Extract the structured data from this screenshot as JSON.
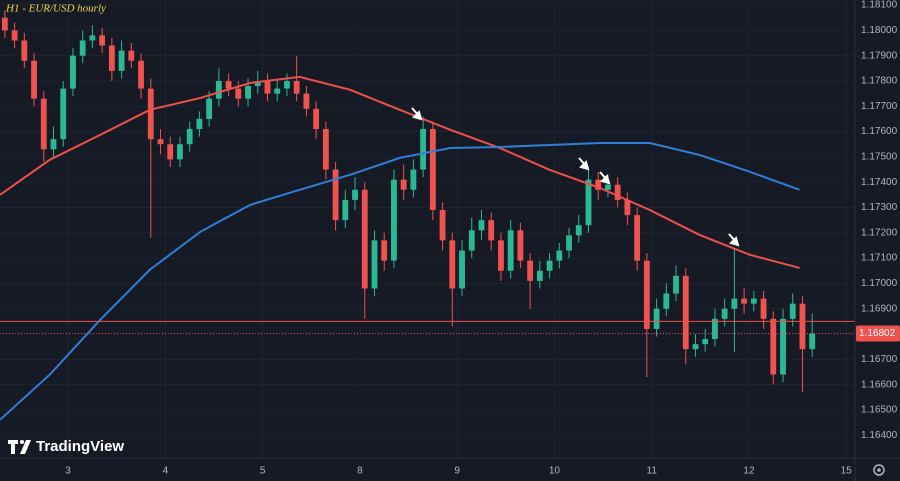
{
  "chart_data": {
    "type": "candlestick",
    "title": "H1 - EUR/USD hourly",
    "brand": "TradingView",
    "x": [
      -0.65,
      -0.55,
      -0.45,
      -0.35,
      -0.25,
      -0.15,
      -0.05,
      0.05,
      0.15,
      0.25,
      0.35,
      0.45,
      0.55,
      0.65,
      0.75,
      0.85,
      0.95,
      1.05,
      1.15,
      1.25,
      1.35,
      1.45,
      1.55,
      1.65,
      1.75,
      1.85,
      1.95,
      2.05,
      2.15,
      2.25,
      2.35,
      2.45,
      2.55,
      2.65,
      2.75,
      2.85,
      2.95,
      3.05,
      3.15,
      3.25,
      3.35,
      3.45,
      3.55,
      3.65,
      3.75,
      3.85,
      3.95,
      4.05,
      4.15,
      4.25,
      4.35,
      4.45,
      4.55,
      4.65,
      4.75,
      4.85,
      4.95,
      5.05,
      5.15,
      5.25,
      5.35,
      5.45,
      5.55,
      5.65,
      5.75,
      5.85,
      5.95,
      6.05,
      6.15,
      6.25,
      6.35,
      6.45,
      6.55,
      6.65,
      6.75,
      6.85,
      6.95,
      7.05,
      7.15,
      7.25,
      7.35,
      7.45,
      7.55,
      7.65
    ],
    "open": [
      1.1805,
      1.18,
      1.1796,
      1.1788,
      1.1773,
      1.1753,
      1.1757,
      1.1777,
      1.179,
      1.1796,
      1.1798,
      1.1794,
      1.1784,
      1.1792,
      1.1788,
      1.1777,
      1.1757,
      1.1755,
      1.1749,
      1.1755,
      1.1761,
      1.1765,
      1.1773,
      1.178,
      1.1777,
      1.1773,
      1.1778,
      1.178,
      1.1775,
      1.1777,
      1.178,
      1.1775,
      1.1769,
      1.1761,
      1.1745,
      1.1725,
      1.1733,
      1.1737,
      1.1698,
      1.1717,
      1.1709,
      1.1741,
      1.1737,
      1.1745,
      1.1761,
      1.1729,
      1.1717,
      1.1698,
      1.1713,
      1.1721,
      1.1725,
      1.1717,
      1.1705,
      1.1721,
      1.1709,
      1.1701,
      1.1705,
      1.1709,
      1.1713,
      1.1719,
      1.1723,
      1.1741,
      1.1737,
      1.1739,
      1.1733,
      1.1727,
      1.1709,
      1.1682,
      1.169,
      1.1696,
      1.1703,
      1.1674,
      1.1676,
      1.1678,
      1.1686,
      1.169,
      1.1694,
      1.1692,
      1.1694,
      1.1686,
      1.1664,
      1.1686,
      1.1692,
      1.1674
    ],
    "high": [
      1.1808,
      1.1803,
      1.1799,
      1.1791,
      1.1776,
      1.1762,
      1.178,
      1.1793,
      1.18,
      1.1802,
      1.1801,
      1.1797,
      1.1796,
      1.1795,
      1.1791,
      1.1781,
      1.1761,
      1.1758,
      1.1758,
      1.1764,
      1.1768,
      1.1776,
      1.1785,
      1.1783,
      1.178,
      1.1781,
      1.1784,
      1.1783,
      1.1781,
      1.1783,
      1.179,
      1.1778,
      1.1772,
      1.1764,
      1.1748,
      1.1737,
      1.1742,
      1.174,
      1.1721,
      1.172,
      1.1745,
      1.1747,
      1.1749,
      1.1766,
      1.1764,
      1.1732,
      1.172,
      1.1717,
      1.1726,
      1.1729,
      1.1728,
      1.172,
      1.1725,
      1.1724,
      1.1712,
      1.1709,
      1.1712,
      1.1716,
      1.1722,
      1.1727,
      1.1746,
      1.1744,
      1.1743,
      1.1742,
      1.1736,
      1.173,
      1.1712,
      1.1694,
      1.17,
      1.1707,
      1.1706,
      1.168,
      1.1682,
      1.169,
      1.1694,
      1.1714,
      1.1698,
      1.1697,
      1.1697,
      1.1689,
      1.169,
      1.1696,
      1.1695,
      1.1688
    ],
    "low": [
      1.1797,
      1.1793,
      1.1785,
      1.177,
      1.1748,
      1.175,
      1.1754,
      1.1774,
      1.1787,
      1.1793,
      1.1791,
      1.178,
      1.1781,
      1.1785,
      1.1773,
      1.1718,
      1.1751,
      1.1746,
      1.1746,
      1.1752,
      1.1758,
      1.1762,
      1.177,
      1.1774,
      1.177,
      1.177,
      1.1775,
      1.1772,
      1.1772,
      1.1774,
      1.1772,
      1.1766,
      1.1757,
      1.1741,
      1.1721,
      1.1722,
      1.1729,
      1.1686,
      1.1695,
      1.1705,
      1.1706,
      1.1733,
      1.1734,
      1.1742,
      1.1725,
      1.1713,
      1.1683,
      1.1695,
      1.171,
      1.1717,
      1.1713,
      1.1701,
      1.1702,
      1.1706,
      1.169,
      1.1698,
      1.1702,
      1.1706,
      1.171,
      1.1716,
      1.172,
      1.1733,
      1.1734,
      1.173,
      1.1723,
      1.1705,
      1.1663,
      1.1679,
      1.1687,
      1.1693,
      1.1668,
      1.1671,
      1.1673,
      1.1675,
      1.1683,
      1.1673,
      1.1688,
      1.1689,
      1.1682,
      1.166,
      1.1661,
      1.1683,
      1.1657,
      1.1671
    ],
    "close": [
      1.18,
      1.1796,
      1.1788,
      1.1773,
      1.1753,
      1.1757,
      1.1777,
      1.179,
      1.1796,
      1.1798,
      1.1794,
      1.1784,
      1.1792,
      1.1788,
      1.1777,
      1.1757,
      1.1755,
      1.1749,
      1.1755,
      1.1761,
      1.1765,
      1.1773,
      1.178,
      1.1777,
      1.1773,
      1.1778,
      1.178,
      1.1775,
      1.1777,
      1.178,
      1.1775,
      1.1769,
      1.1761,
      1.1745,
      1.1725,
      1.1733,
      1.1737,
      1.1698,
      1.1717,
      1.1709,
      1.1741,
      1.1737,
      1.1745,
      1.1761,
      1.1729,
      1.1717,
      1.1698,
      1.1713,
      1.1721,
      1.1725,
      1.1717,
      1.1705,
      1.1721,
      1.1709,
      1.1701,
      1.1705,
      1.1709,
      1.1713,
      1.1719,
      1.1723,
      1.1741,
      1.1737,
      1.1739,
      1.1733,
      1.1727,
      1.1709,
      1.1682,
      1.169,
      1.1696,
      1.1703,
      1.1674,
      1.1676,
      1.1678,
      1.1686,
      1.169,
      1.1694,
      1.1692,
      1.1694,
      1.1686,
      1.1664,
      1.1686,
      1.1692,
      1.1674,
      1.16802
    ],
    "up_color": "#2bb894",
    "down_color": "#ef5350",
    "lines": [
      {
        "color": "#f0504a",
        "x": [
          -0.7,
          -0.19,
          0.33,
          0.84,
          1.36,
          1.87,
          2.38,
          2.9,
          3.41,
          3.93,
          4.44,
          4.95,
          5.47,
          5.98,
          6.49,
          7.01,
          7.52
        ],
        "values": [
          1.1735,
          1.17488,
          1.17587,
          1.17686,
          1.17733,
          1.17792,
          1.17816,
          1.17765,
          1.17686,
          1.17607,
          1.17535,
          1.17449,
          1.17377,
          1.1729,
          1.17192,
          1.17113,
          1.17061
        ]
      },
      {
        "color": "#2f7fd8",
        "x": [
          -0.7,
          -0.19,
          0.33,
          0.84,
          1.36,
          1.87,
          2.38,
          2.9,
          3.41,
          3.93,
          4.44,
          4.95,
          5.47,
          5.98,
          6.49,
          7.01,
          7.52
        ],
        "values": [
          1.16461,
          1.16639,
          1.16856,
          1.17054,
          1.17204,
          1.1731,
          1.1737,
          1.17429,
          1.17496,
          1.17535,
          1.17539,
          1.17547,
          1.17555,
          1.17555,
          1.17508,
          1.17441,
          1.1737
        ]
      }
    ],
    "level": {
      "value": 1.1685,
      "color": "#f0504a"
    },
    "last_price": 1.16802,
    "xlim": [
      -0.7,
      8.09
    ],
    "xticks": [
      {
        "value": 0,
        "label": "3"
      },
      {
        "value": 1,
        "label": "4"
      },
      {
        "value": 2,
        "label": "5"
      },
      {
        "value": 3,
        "label": "8"
      },
      {
        "value": 4,
        "label": "9"
      },
      {
        "value": 5,
        "label": "10"
      },
      {
        "value": 6,
        "label": "11"
      },
      {
        "value": 7,
        "label": "12"
      },
      {
        "value": 8,
        "label": "15"
      }
    ],
    "ylim": [
      1.1631,
      1.1812
    ],
    "yticks": [
      {
        "value": 1.164,
        "label": "1.16400"
      },
      {
        "value": 1.165,
        "label": "1.16500"
      },
      {
        "value": 1.166,
        "label": "1.16600"
      },
      {
        "value": 1.167,
        "label": "1.16700"
      },
      {
        "value": 1.168,
        "label": "1.16800"
      },
      {
        "value": 1.169,
        "label": "1.16900"
      },
      {
        "value": 1.17,
        "label": "1.17000"
      },
      {
        "value": 1.171,
        "label": "1.17100"
      },
      {
        "value": 1.172,
        "label": "1.17200"
      },
      {
        "value": 1.173,
        "label": "1.17300"
      },
      {
        "value": 1.174,
        "label": "1.17400"
      },
      {
        "value": 1.175,
        "label": "1.17500"
      },
      {
        "value": 1.176,
        "label": "1.17600"
      },
      {
        "value": 1.177,
        "label": "1.17700"
      },
      {
        "value": 1.178,
        "label": "1.17800"
      },
      {
        "value": 1.179,
        "label": "1.17900"
      },
      {
        "value": 1.18,
        "label": "1.18000"
      },
      {
        "value": 1.181,
        "label": "1.18100"
      }
    ],
    "grid": true
  }
}
